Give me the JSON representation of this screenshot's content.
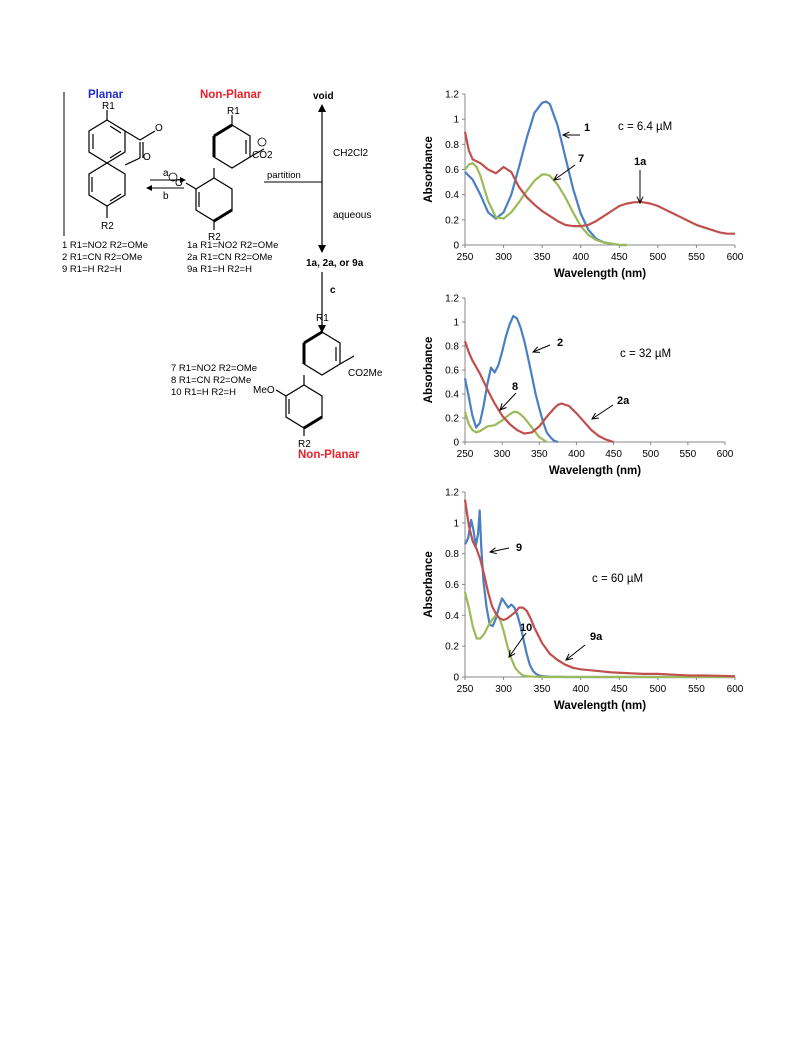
{
  "scheme": {
    "planar_label": "Planar",
    "nonplanar_label_top": "Non-Planar",
    "nonplanar_label_bottom": "Non-Planar",
    "arrow_a": "a",
    "arrow_b": "b",
    "arrow_c": "c",
    "void_label": "void",
    "ch2cl2_label": "CH2Cl2",
    "partition_label": "partition",
    "aqueous_label": "aqueous",
    "anions_label": "1a, 2a, or 9a",
    "atom_R1": "R1",
    "atom_R2": "R2",
    "atom_O_ring": "O",
    "atom_O_carbonyl": "O",
    "atom_Ominus": "O",
    "atom_CO2": "CO2",
    "atom_CO2Me": "CO2Me",
    "atom_MeO": "MeO",
    "compounds_left": [
      "1 R1=NO2 R2=OMe",
      "2 R1=CN R2=OMe",
      "9 R1=H R2=H"
    ],
    "compounds_mid": [
      "1a R1=NO2 R2=OMe",
      "2a R1=CN R2=OMe",
      "9a R1=H R2=H"
    ],
    "compounds_bottom": [
      "7 R1=NO2 R2=OMe",
      "8 R1=CN R2=OMe",
      "10 R1=H R2=H"
    ],
    "colors": {
      "planar": "#1f2bd1",
      "nonplanar": "#e8202a"
    }
  },
  "chart_data": [
    {
      "type": "line",
      "xlabel": "Wavelength (nm)",
      "ylabel": "Absorbance",
      "xlim": [
        250,
        600
      ],
      "ylim": [
        0,
        1.2
      ],
      "xticks": [
        250,
        300,
        350,
        400,
        450,
        500,
        550,
        600
      ],
      "yticks": [
        0,
        0.2,
        0.4,
        0.6,
        0.8,
        1,
        1.2
      ],
      "annotation": "c = 6.4 µM",
      "series": [
        {
          "name": "1",
          "color": "#4a7fc1",
          "x": [
            250,
            260,
            270,
            280,
            290,
            300,
            310,
            320,
            330,
            340,
            350,
            355,
            360,
            370,
            380,
            390,
            400,
            410,
            420,
            430,
            440,
            450,
            460
          ],
          "y": [
            0.58,
            0.52,
            0.4,
            0.26,
            0.21,
            0.26,
            0.4,
            0.62,
            0.85,
            1.05,
            1.13,
            1.14,
            1.12,
            0.95,
            0.7,
            0.45,
            0.25,
            0.12,
            0.05,
            0.02,
            0.01,
            0.0,
            0.0
          ]
        },
        {
          "name": "7",
          "color": "#9bbb59",
          "x": [
            250,
            255,
            260,
            265,
            270,
            280,
            290,
            300,
            310,
            320,
            330,
            340,
            350,
            355,
            360,
            370,
            380,
            390,
            400,
            410,
            420,
            430,
            440,
            450,
            460
          ],
          "y": [
            0.6,
            0.64,
            0.65,
            0.62,
            0.55,
            0.35,
            0.22,
            0.21,
            0.26,
            0.34,
            0.43,
            0.51,
            0.56,
            0.56,
            0.55,
            0.48,
            0.38,
            0.26,
            0.15,
            0.08,
            0.04,
            0.02,
            0.01,
            0.0,
            0.0
          ]
        },
        {
          "name": "1a",
          "color": "#c0504d",
          "x": [
            250,
            255,
            260,
            270,
            280,
            290,
            300,
            310,
            320,
            330,
            340,
            350,
            360,
            370,
            380,
            390,
            400,
            410,
            420,
            430,
            440,
            450,
            460,
            470,
            480,
            490,
            500,
            510,
            520,
            530,
            540,
            550,
            560,
            570,
            580,
            590,
            600
          ],
          "y": [
            0.9,
            0.75,
            0.68,
            0.65,
            0.6,
            0.57,
            0.62,
            0.58,
            0.46,
            0.38,
            0.32,
            0.27,
            0.23,
            0.19,
            0.16,
            0.15,
            0.15,
            0.16,
            0.19,
            0.23,
            0.27,
            0.31,
            0.33,
            0.34,
            0.34,
            0.33,
            0.31,
            0.28,
            0.25,
            0.22,
            0.19,
            0.16,
            0.14,
            0.12,
            0.1,
            0.09,
            0.09
          ]
        }
      ],
      "labels": [
        "1",
        "7",
        "1a"
      ]
    },
    {
      "type": "line",
      "xlabel": "Wavelength (nm)",
      "ylabel": "Absorbance",
      "xlim": [
        250,
        600
      ],
      "ylim": [
        0,
        1.2
      ],
      "xticks": [
        250,
        300,
        350,
        400,
        450,
        500,
        550,
        600
      ],
      "yticks": [
        0,
        0.2,
        0.4,
        0.6,
        0.8,
        1,
        1.2
      ],
      "annotation": "c = 32 µM",
      "series": [
        {
          "name": "2",
          "color": "#4a7fc1",
          "x": [
            250,
            255,
            260,
            265,
            270,
            275,
            280,
            285,
            290,
            295,
            300,
            305,
            310,
            315,
            320,
            325,
            330,
            335,
            340,
            345,
            350,
            355,
            360,
            365,
            370,
            375
          ],
          "y": [
            0.53,
            0.38,
            0.22,
            0.12,
            0.16,
            0.3,
            0.48,
            0.62,
            0.58,
            0.64,
            0.75,
            0.88,
            0.98,
            1.05,
            1.03,
            0.95,
            0.84,
            0.7,
            0.55,
            0.4,
            0.28,
            0.17,
            0.08,
            0.04,
            0.01,
            0.0
          ]
        },
        {
          "name": "8",
          "color": "#9bbb59",
          "x": [
            250,
            255,
            260,
            265,
            270,
            275,
            280,
            290,
            300,
            310,
            315,
            320,
            325,
            330,
            340,
            350,
            355,
            360
          ],
          "y": [
            0.25,
            0.15,
            0.1,
            0.08,
            0.09,
            0.11,
            0.13,
            0.14,
            0.18,
            0.23,
            0.25,
            0.25,
            0.23,
            0.2,
            0.12,
            0.04,
            0.02,
            0.0
          ]
        },
        {
          "name": "2a",
          "color": "#c0504d",
          "x": [
            250,
            255,
            260,
            270,
            280,
            290,
            300,
            310,
            320,
            330,
            340,
            350,
            360,
            370,
            375,
            380,
            390,
            400,
            410,
            420,
            430,
            440,
            450
          ],
          "y": [
            0.84,
            0.75,
            0.68,
            0.57,
            0.44,
            0.32,
            0.22,
            0.15,
            0.1,
            0.07,
            0.08,
            0.13,
            0.21,
            0.28,
            0.31,
            0.32,
            0.3,
            0.24,
            0.17,
            0.1,
            0.05,
            0.02,
            0.0
          ]
        }
      ],
      "labels": [
        "2",
        "8",
        "2a"
      ]
    },
    {
      "type": "line",
      "xlabel": "Wavelength (nm)",
      "ylabel": "Absorbance",
      "xlim": [
        250,
        600
      ],
      "ylim": [
        0,
        1.2
      ],
      "xticks": [
        250,
        300,
        350,
        400,
        450,
        500,
        550,
        600
      ],
      "yticks": [
        0,
        0.2,
        0.4,
        0.6,
        0.8,
        1,
        1.2
      ],
      "annotation": "c = 60 µM",
      "series": [
        {
          "name": "9",
          "color": "#4a7fc1",
          "x": [
            250,
            254,
            258,
            261,
            264,
            267,
            269,
            271,
            274,
            278,
            282,
            286,
            290,
            294,
            298,
            302,
            306,
            310,
            314,
            318,
            322,
            326,
            330,
            334,
            338,
            342,
            346,
            350,
            360,
            380,
            400,
            450,
            500,
            550,
            600
          ],
          "y": [
            0.86,
            0.9,
            1.02,
            0.95,
            0.85,
            0.93,
            1.08,
            0.85,
            0.62,
            0.45,
            0.34,
            0.33,
            0.38,
            0.45,
            0.51,
            0.48,
            0.45,
            0.47,
            0.45,
            0.4,
            0.33,
            0.24,
            0.15,
            0.08,
            0.04,
            0.02,
            0.01,
            0.005,
            0.002,
            0.0,
            0.0,
            0.0,
            0.0,
            0.0,
            0.0
          ]
        },
        {
          "name": "10",
          "color": "#9bbb59",
          "x": [
            250,
            255,
            260,
            265,
            270,
            275,
            280,
            285,
            290,
            295,
            300,
            305,
            310,
            315,
            320,
            325,
            330,
            340,
            350,
            360,
            400,
            450,
            500,
            600
          ],
          "y": [
            0.55,
            0.45,
            0.33,
            0.25,
            0.25,
            0.28,
            0.33,
            0.37,
            0.4,
            0.38,
            0.3,
            0.2,
            0.12,
            0.06,
            0.03,
            0.01,
            0.005,
            0.002,
            0.0,
            0.0,
            0.0,
            0.0,
            0.0,
            0.0
          ]
        },
        {
          "name": "9a",
          "color": "#c0504d",
          "x": [
            250,
            255,
            260,
            265,
            270,
            275,
            280,
            285,
            290,
            295,
            300,
            305,
            310,
            315,
            320,
            325,
            330,
            335,
            340,
            350,
            360,
            370,
            380,
            390,
            400,
            420,
            440,
            460,
            480,
            500,
            520,
            540,
            560,
            580,
            600
          ],
          "y": [
            1.15,
            0.98,
            0.88,
            0.83,
            0.76,
            0.66,
            0.55,
            0.46,
            0.41,
            0.38,
            0.37,
            0.38,
            0.4,
            0.42,
            0.45,
            0.45,
            0.43,
            0.38,
            0.32,
            0.22,
            0.15,
            0.11,
            0.08,
            0.06,
            0.05,
            0.04,
            0.03,
            0.025,
            0.02,
            0.02,
            0.015,
            0.01,
            0.01,
            0.008,
            0.005
          ]
        }
      ],
      "labels": [
        "9",
        "10",
        "9a"
      ]
    }
  ]
}
